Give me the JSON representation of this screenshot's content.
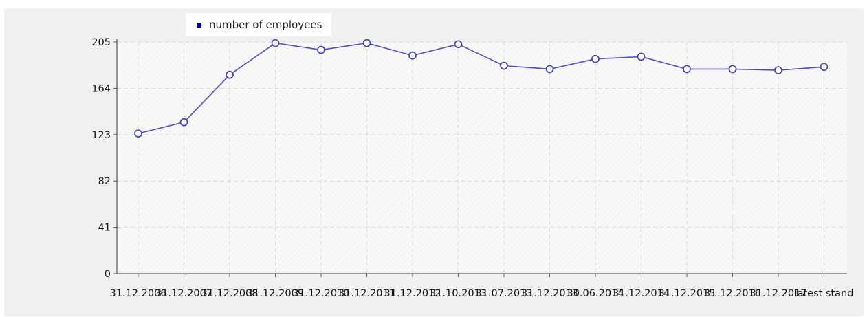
{
  "chart_data": {
    "type": "line",
    "title": "",
    "xlabel": "",
    "ylabel": "",
    "legend": {
      "placement": "top-left",
      "entries": [
        "number of employees"
      ]
    },
    "grid": true,
    "ylim": [
      0,
      205
    ],
    "yticks": [
      0,
      41,
      82,
      123,
      164,
      205
    ],
    "categories": [
      "31.12.2006",
      "31.12.2007",
      "31.12.2008",
      "31.12.2009",
      "31.12.2010",
      "31.12.2011",
      "31.12.2012",
      "31.10.2013",
      "31.07.2013",
      "31.12.2013",
      "30.06.2014",
      "31.12.2014",
      "31.12.2015",
      "31.12.2016",
      "31.12.2017",
      "latest stand"
    ],
    "series": [
      {
        "name": "number of employees",
        "color": "#4b4bd2",
        "values": [
          124,
          134,
          176,
          204,
          198,
          204,
          193,
          203,
          184,
          181,
          190,
          192,
          181,
          181,
          180,
          183
        ]
      }
    ]
  }
}
